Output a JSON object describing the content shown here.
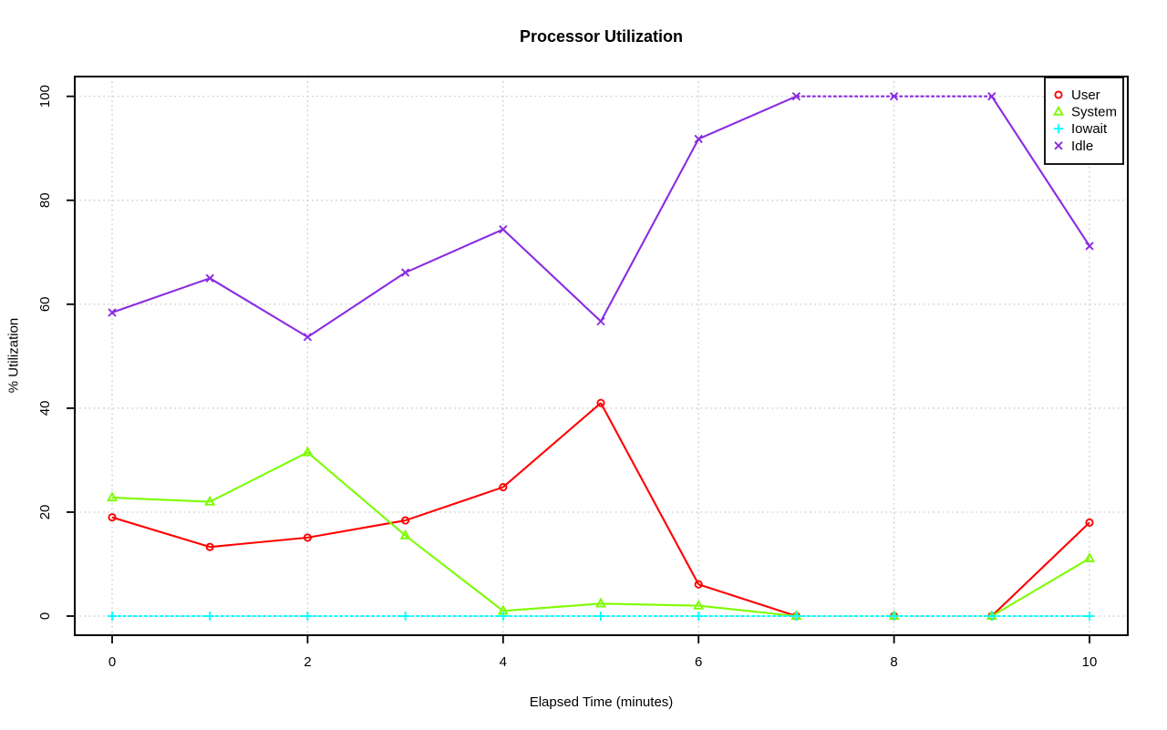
{
  "chart_data": {
    "type": "line",
    "title": "Processor Utilization",
    "xlabel": "Elapsed Time (minutes)",
    "ylabel": "% Utilization",
    "x": [
      0,
      1,
      2,
      3,
      4,
      5,
      6,
      7,
      8,
      9,
      10
    ],
    "xlim": [
      0,
      10
    ],
    "ylim": [
      0,
      100
    ],
    "x_ticks": [
      0,
      2,
      4,
      6,
      8,
      10
    ],
    "y_ticks": [
      0,
      20,
      40,
      60,
      80,
      100
    ],
    "grid": {
      "shown": true,
      "style": "dotted",
      "color": "#c9c9c9",
      "vertical_at": [
        0,
        2,
        4,
        6,
        8,
        10
      ],
      "horizontal_at": [
        0,
        20,
        40,
        60,
        80,
        100
      ]
    },
    "legend_position": "top-right",
    "series": [
      {
        "name": "User",
        "color": "#ff0000",
        "marker": "circle",
        "values": [
          19,
          13.3,
          15.1,
          18.4,
          24.8,
          41,
          6.1,
          0,
          0,
          0,
          18
        ]
      },
      {
        "name": "System",
        "color": "#7cfc00",
        "marker": "triangle",
        "values": [
          22.8,
          22,
          31.5,
          15.5,
          1,
          2.4,
          2,
          0,
          0,
          0,
          11.1
        ]
      },
      {
        "name": "Iowait",
        "color": "#00ffff",
        "marker": "plus",
        "values": [
          0,
          0,
          0,
          0,
          0,
          0,
          0,
          0,
          0,
          0,
          0
        ]
      },
      {
        "name": "Idle",
        "color": "#8a2be2",
        "marker": "x",
        "values": [
          58.4,
          65,
          53.7,
          66.1,
          74.4,
          56.7,
          91.8,
          100,
          100,
          100,
          71.2
        ]
      }
    ],
    "colors": {
      "axis": "#000000",
      "grid": "#c9c9c9",
      "background": "#ffffff",
      "user": "#ff0000",
      "system": "#7cfc00",
      "iowait": "#00ffff",
      "idle": "#8a2be2"
    }
  }
}
